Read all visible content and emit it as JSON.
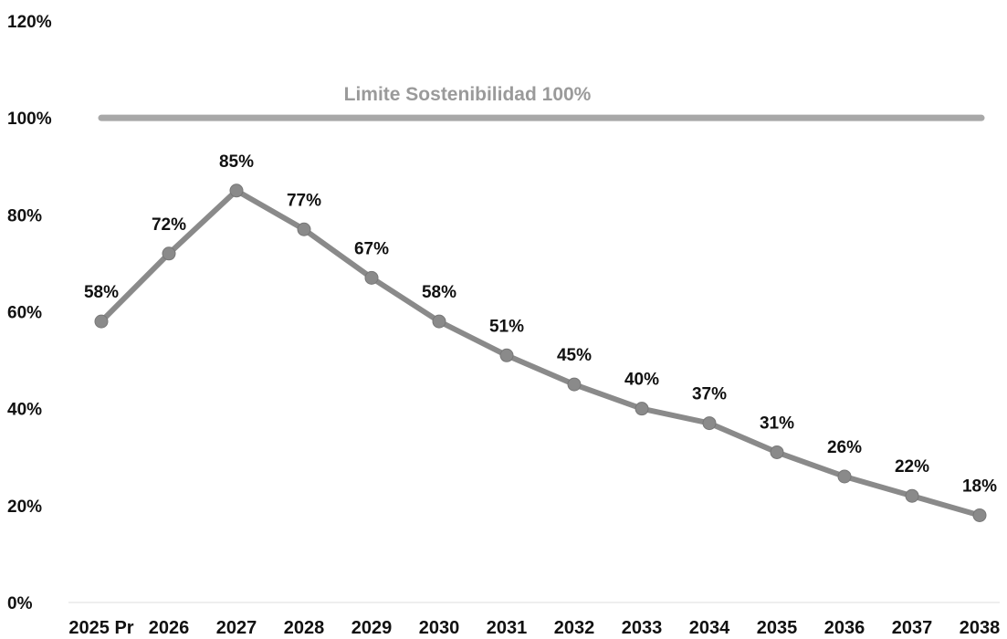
{
  "chart_data": {
    "type": "line",
    "categories": [
      "2025 Pr",
      "2026",
      "2027",
      "2028",
      "2029",
      "2030",
      "2031",
      "2032",
      "2033",
      "2034",
      "2035",
      "2036",
      "2037",
      "2038"
    ],
    "series": [
      {
        "values": [
          58,
          72,
          85,
          77,
          67,
          58,
          51,
          45,
          40,
          37,
          31,
          26,
          22,
          18
        ],
        "data_labels": [
          "58%",
          "72%",
          "85%",
          "77%",
          "67%",
          "58%",
          "51%",
          "45%",
          "40%",
          "37%",
          "31%",
          "26%",
          "22%",
          "18%"
        ],
        "color": "#8a8a8a"
      }
    ],
    "reference_line": {
      "value": 100,
      "label": "Limite Sostenibilidad 100%",
      "color": "#a8a8a8"
    },
    "y_ticks": [
      "0%",
      "20%",
      "40%",
      "60%",
      "80%",
      "100%",
      "120%"
    ],
    "ylim": [
      0,
      120
    ],
    "grid": false,
    "legend": "none"
  }
}
